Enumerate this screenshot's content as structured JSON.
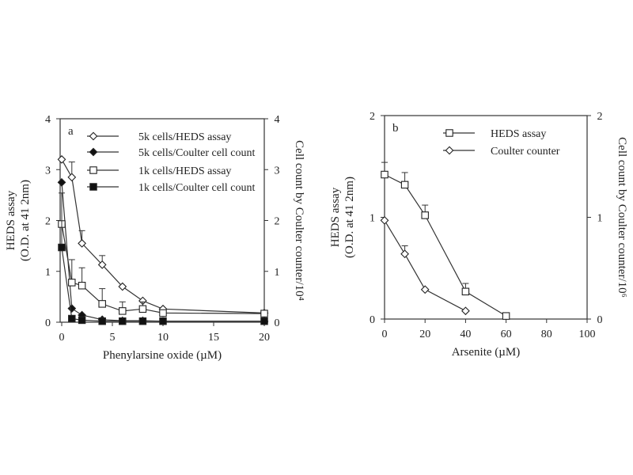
{
  "chart_data": [
    {
      "type": "line",
      "panel_label": "a",
      "xlabel": "Phenylarsine oxide (µM)",
      "ylabel": "HEDS assay",
      "ylabel2": "(O.D. at 41 2nm)",
      "y2label": "Cell count by Coulter counter/10⁴",
      "xlim": [
        0,
        20
      ],
      "ylim": [
        0,
        4
      ],
      "y2lim": [
        0,
        4
      ],
      "xticks": [
        "0",
        "5",
        "10",
        "15",
        "20"
      ],
      "yticks": [
        "0",
        "1",
        "2",
        "3",
        "4"
      ],
      "y2ticks": [
        "0",
        "1",
        "2",
        "3",
        "4"
      ],
      "legend_position": "top-right",
      "series": [
        {
          "name": "5k cells/HEDS assay",
          "marker": "diamond-open",
          "x": [
            0,
            1,
            2,
            4,
            6,
            8,
            10,
            20
          ],
          "y": [
            3.2,
            2.85,
            1.55,
            1.13,
            0.7,
            0.42,
            0.26,
            0.18
          ],
          "err": [
            0,
            0.3,
            0.25,
            0.18,
            0,
            0,
            0,
            0
          ]
        },
        {
          "name": "5k cells/Coulter cell count",
          "marker": "diamond-filled",
          "x": [
            0,
            1,
            2,
            4,
            6,
            8,
            10,
            20
          ],
          "y": [
            2.75,
            0.27,
            0.14,
            0.05,
            0.03,
            0.03,
            0.02,
            0.02
          ],
          "err": [
            0,
            0,
            0,
            0,
            0,
            0,
            0,
            0
          ]
        },
        {
          "name": "1k cells/HEDS assay",
          "marker": "square-open",
          "x": [
            0,
            1,
            2,
            4,
            6,
            8,
            10,
            20
          ],
          "y": [
            1.93,
            0.78,
            0.72,
            0.36,
            0.22,
            0.26,
            0.18,
            0.17
          ],
          "err": [
            0,
            0.45,
            0.35,
            0.3,
            0.18,
            0.14,
            0,
            0
          ]
        },
        {
          "name": "1k cells/Coulter cell count",
          "marker": "square-filled",
          "x": [
            0,
            1,
            2,
            4,
            6,
            8,
            10,
            20
          ],
          "y": [
            1.47,
            0.07,
            0.04,
            0.02,
            0.02,
            0.02,
            0.02,
            0.02
          ],
          "err": [
            1.07,
            0,
            0,
            0,
            0,
            0,
            0,
            0
          ]
        }
      ]
    },
    {
      "type": "line",
      "panel_label": "b",
      "xlabel": "Arsenite (µM)",
      "ylabel": "HEDS assay",
      "ylabel2": "(O.D. at 41 2nm)",
      "y2label": "Cell count by Coulter counter/10⁶",
      "xlim": [
        0,
        100
      ],
      "ylim": [
        0,
        2
      ],
      "y2lim": [
        0,
        2
      ],
      "xticks": [
        "0",
        "20",
        "40",
        "60",
        "80",
        "100"
      ],
      "yticks": [
        "0",
        "1",
        "2"
      ],
      "y2ticks": [
        "0",
        "1",
        "2"
      ],
      "legend_position": "top-right",
      "series": [
        {
          "name": "HEDS assay",
          "marker": "square-open",
          "x": [
            0,
            10,
            20,
            40,
            60
          ],
          "y": [
            1.42,
            1.32,
            1.02,
            0.27,
            0.03
          ],
          "err": [
            0.12,
            0.12,
            0.1,
            0.08,
            0
          ]
        },
        {
          "name": "Coulter counter",
          "marker": "diamond-open",
          "x": [
            0,
            10,
            20,
            40
          ],
          "y": [
            0.97,
            0.64,
            0.29,
            0.08
          ],
          "err": [
            0,
            0.08,
            0,
            0
          ]
        }
      ]
    }
  ]
}
